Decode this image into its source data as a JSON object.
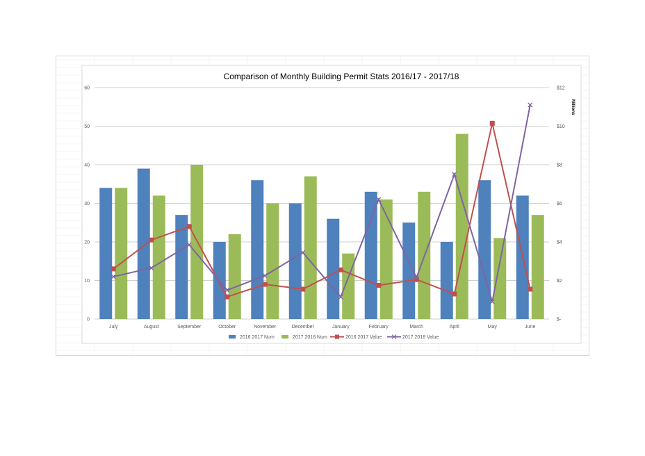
{
  "chart_data": {
    "type": "bar",
    "title": "Comparison of Monthly Building Permit Stats 2016/17 - 2017/18",
    "categories": [
      "July",
      "August",
      "September",
      "October",
      "November",
      "December",
      "January",
      "February",
      "March",
      "April",
      "May",
      "June"
    ],
    "y_left": {
      "ticks": [
        "0",
        "10",
        "20",
        "30",
        "40",
        "50",
        "60"
      ],
      "ylim": [
        0,
        60
      ]
    },
    "y_right": {
      "ticks": [
        "$-",
        "$2",
        "$4",
        "$6",
        "$8",
        "$10",
        "$12"
      ],
      "ylim": [
        0,
        12
      ],
      "unit_label": "Millions"
    },
    "grid": true,
    "legend_position": "bottom",
    "series": [
      {
        "name": "2016 2017 Num",
        "kind": "bar",
        "axis": "left",
        "color": "#4f81bd",
        "values": [
          34,
          39,
          27,
          20,
          36,
          30,
          26,
          33,
          25,
          20,
          36,
          32
        ]
      },
      {
        "name": "2017 2018 Num",
        "kind": "bar",
        "axis": "left",
        "color": "#9bbb59",
        "values": [
          34,
          32,
          40,
          22,
          30,
          37,
          17,
          31,
          33,
          48,
          21,
          27
        ]
      },
      {
        "name": "2016 2017 Value",
        "kind": "line",
        "axis": "right",
        "color": "#c0504d",
        "marker": "square",
        "values": [
          2.6,
          4.1,
          4.8,
          1.15,
          1.8,
          1.55,
          2.55,
          1.75,
          2.05,
          1.3,
          10.15,
          1.55
        ]
      },
      {
        "name": "2017 2018 Value",
        "kind": "line",
        "axis": "right",
        "color": "#8064a2",
        "marker": "x",
        "values": [
          2.2,
          2.65,
          3.85,
          1.5,
          2.25,
          3.45,
          1.15,
          6.2,
          2.15,
          7.5,
          0.9,
          11.1
        ]
      }
    ]
  }
}
